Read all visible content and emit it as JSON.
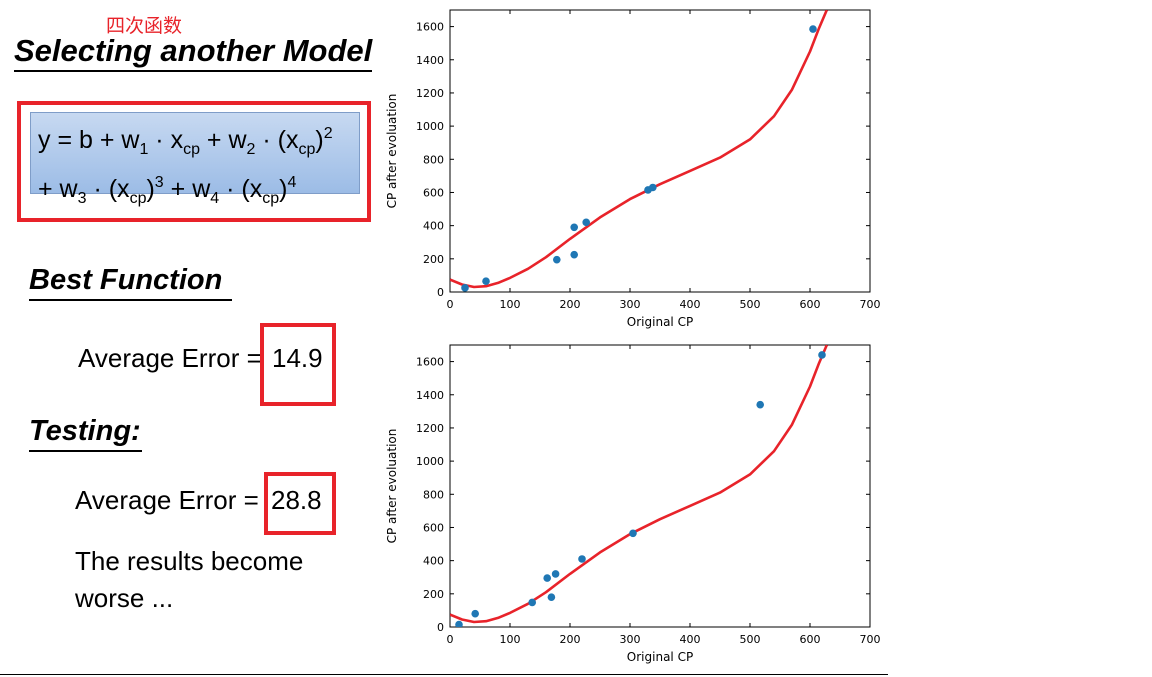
{
  "slide": {
    "annotation": "四次函数",
    "title": "Selecting another Model",
    "formula": {
      "line1": [
        "y = b + w",
        "1",
        " · x",
        "cp",
        " + w",
        "2",
        " · (x",
        "cp",
        ")",
        "2"
      ],
      "line2": [
        "+ w",
        "3",
        " · (x",
        "cp",
        ")",
        "3",
        " + w",
        "4",
        " · (x",
        "cp",
        ")",
        "4"
      ]
    },
    "best_function": {
      "heading": "Best Function",
      "error_label": "Average Error = ",
      "error_value": "14.9"
    },
    "testing": {
      "heading": "Testing:",
      "error_label": "Average Error = ",
      "error_value": "28.8"
    },
    "conclusion": [
      "The results become",
      "worse ..."
    ],
    "colors": {
      "accent_red": "#e8232a",
      "curve": "#e8232a",
      "points": "#1f77b4",
      "formula_bg": "#b4cdee"
    }
  },
  "chart_data": [
    {
      "type": "scatter",
      "xlabel": "Original CP",
      "ylabel": "CP after evoluation",
      "xlim": [
        0,
        700
      ],
      "ylim": [
        0,
        1700
      ],
      "xticks": [
        0,
        100,
        200,
        300,
        400,
        500,
        600,
        700
      ],
      "yticks": [
        0,
        200,
        400,
        600,
        800,
        1000,
        1200,
        1400,
        1600
      ],
      "points": [
        {
          "x": 25,
          "y": 25
        },
        {
          "x": 60,
          "y": 65
        },
        {
          "x": 178,
          "y": 195
        },
        {
          "x": 207,
          "y": 225
        },
        {
          "x": 207,
          "y": 390
        },
        {
          "x": 227,
          "y": 420
        },
        {
          "x": 330,
          "y": 615
        },
        {
          "x": 338,
          "y": 630
        },
        {
          "x": 605,
          "y": 1585
        }
      ],
      "curve": [
        {
          "x": 0,
          "y": 75
        },
        {
          "x": 20,
          "y": 45
        },
        {
          "x": 40,
          "y": 30
        },
        {
          "x": 60,
          "y": 35
        },
        {
          "x": 80,
          "y": 55
        },
        {
          "x": 100,
          "y": 85
        },
        {
          "x": 130,
          "y": 140
        },
        {
          "x": 160,
          "y": 210
        },
        {
          "x": 200,
          "y": 320
        },
        {
          "x": 250,
          "y": 450
        },
        {
          "x": 300,
          "y": 560
        },
        {
          "x": 350,
          "y": 650
        },
        {
          "x": 400,
          "y": 730
        },
        {
          "x": 450,
          "y": 810
        },
        {
          "x": 500,
          "y": 920
        },
        {
          "x": 540,
          "y": 1060
        },
        {
          "x": 570,
          "y": 1220
        },
        {
          "x": 600,
          "y": 1450
        },
        {
          "x": 615,
          "y": 1590
        },
        {
          "x": 628,
          "y": 1700
        }
      ],
      "grid": false
    },
    {
      "type": "scatter",
      "xlabel": "Original CP",
      "ylabel": "CP after evoluation",
      "xlim": [
        0,
        700
      ],
      "ylim": [
        0,
        1700
      ],
      "xticks": [
        0,
        100,
        200,
        300,
        400,
        500,
        600,
        700
      ],
      "yticks": [
        0,
        200,
        400,
        600,
        800,
        1000,
        1200,
        1400,
        1600
      ],
      "points": [
        {
          "x": 15,
          "y": 15
        },
        {
          "x": 42,
          "y": 80
        },
        {
          "x": 137,
          "y": 148
        },
        {
          "x": 162,
          "y": 295
        },
        {
          "x": 169,
          "y": 180
        },
        {
          "x": 176,
          "y": 320
        },
        {
          "x": 220,
          "y": 410
        },
        {
          "x": 305,
          "y": 565
        },
        {
          "x": 517,
          "y": 1340
        },
        {
          "x": 620,
          "y": 1640
        }
      ],
      "curve": [
        {
          "x": 0,
          "y": 75
        },
        {
          "x": 20,
          "y": 45
        },
        {
          "x": 40,
          "y": 30
        },
        {
          "x": 60,
          "y": 35
        },
        {
          "x": 80,
          "y": 55
        },
        {
          "x": 100,
          "y": 85
        },
        {
          "x": 130,
          "y": 140
        },
        {
          "x": 160,
          "y": 210
        },
        {
          "x": 200,
          "y": 320
        },
        {
          "x": 250,
          "y": 450
        },
        {
          "x": 300,
          "y": 560
        },
        {
          "x": 350,
          "y": 650
        },
        {
          "x": 400,
          "y": 730
        },
        {
          "x": 450,
          "y": 810
        },
        {
          "x": 500,
          "y": 920
        },
        {
          "x": 540,
          "y": 1060
        },
        {
          "x": 570,
          "y": 1220
        },
        {
          "x": 600,
          "y": 1450
        },
        {
          "x": 615,
          "y": 1590
        },
        {
          "x": 628,
          "y": 1700
        }
      ],
      "grid": false
    }
  ]
}
